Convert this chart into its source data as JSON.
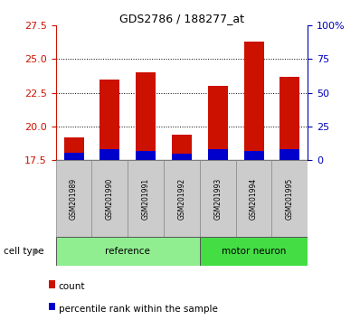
{
  "title": "GDS2786 / 188277_at",
  "samples": [
    "GSM201989",
    "GSM201990",
    "GSM201991",
    "GSM201992",
    "GSM201993",
    "GSM201994",
    "GSM201995"
  ],
  "count_values": [
    19.2,
    23.5,
    24.0,
    19.4,
    23.0,
    26.3,
    23.7
  ],
  "percentile_values": [
    18.05,
    18.3,
    18.2,
    17.95,
    18.3,
    18.2,
    18.3
  ],
  "base_value": 17.5,
  "ylim": [
    17.5,
    27.5
  ],
  "yticks": [
    17.5,
    20.0,
    22.5,
    25.0,
    27.5
  ],
  "right_yticks": [
    0,
    25,
    50,
    75,
    100
  ],
  "right_ylabels": [
    "0",
    "25",
    "50",
    "75",
    "100%"
  ],
  "groups": [
    {
      "label": "reference",
      "start": 0,
      "end": 4,
      "color": "#90EE90"
    },
    {
      "label": "motor neuron",
      "start": 4,
      "end": 7,
      "color": "#44DD44"
    }
  ],
  "cell_type_label": "cell type",
  "bar_width": 0.55,
  "count_color": "#CC1100",
  "percentile_color": "#0000CC",
  "left_tick_color": "#CC1100",
  "right_tick_color": "#0000BB",
  "grid_color": "black",
  "plot_bg": "white",
  "legend_count": "count",
  "legend_percentile": "percentile rank within the sample"
}
